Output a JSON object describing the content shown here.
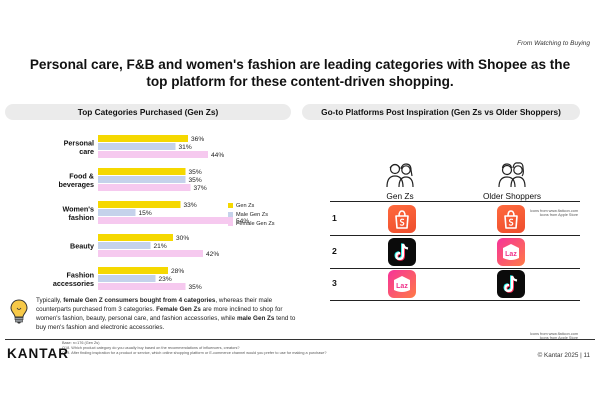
{
  "kicker": "From Watching to Buying",
  "headline": "Personal care, F&B and women's fashion are leading categories with Shopee as the top platform for these content-driven shopping.",
  "left_panel_title": "Top Categories Purchased (Gen Zs)",
  "right_panel_title": "Go-to Platforms Post Inspiration (Gen Zs vs Older Shoppers)",
  "colors": {
    "gen_z": "#f5d800",
    "male_gen_z": "#c5d2eb",
    "female_gen_z": "#f6c9ef"
  },
  "chart_data": {
    "type": "bar",
    "orientation": "horizontal",
    "categories": [
      "Personal care",
      "Food & beverages",
      "Women's fashion",
      "Beauty",
      "Fashion accessories"
    ],
    "series": [
      {
        "name": "Gen Zs",
        "values": [
          36,
          35,
          33,
          30,
          28
        ],
        "labels": [
          "36%",
          "35%",
          "33%",
          "30%",
          "28%"
        ]
      },
      {
        "name": "Male Gen Zs",
        "values": [
          31,
          35,
          15,
          21,
          23
        ],
        "labels": [
          "31%",
          "35%",
          "15%",
          "21%",
          "23%"
        ]
      },
      {
        "name": "Female Gen Zs",
        "values": [
          44,
          37,
          54,
          42,
          35
        ],
        "labels": [
          "44%",
          "37%",
          "54%",
          "42%",
          "35%"
        ]
      }
    ],
    "legend_position": "right",
    "grid": false
  },
  "category_display": [
    [
      "Personal",
      "care"
    ],
    [
      "Food &",
      "beverages"
    ],
    [
      "Women's",
      "fashion"
    ],
    [
      "Beauty"
    ],
    [
      "Fashion",
      "accessories"
    ]
  ],
  "note": {
    "p1": "Typically, ",
    "b1": "female Gen Z consumers bought from 4 categories",
    "p2": ", whereas their male counterparts purchased from 3 categories. ",
    "b2": "Female Gen Zs",
    "p3": " are more inclined to shop for women's fashion, beauty, personal care, and fashion accessories, while ",
    "b3": "male Gen Zs",
    "p4": " tend to buy men's fashion and electronic accessories."
  },
  "platforms": {
    "columns": [
      "Gen Zs",
      "Older Shoppers"
    ],
    "ranks": [
      "1",
      "2",
      "3"
    ],
    "gen_z": [
      "Shopee",
      "TikTok",
      "Lazada"
    ],
    "older": [
      "Shopee",
      "Lazada",
      "TikTok"
    ]
  },
  "source_notes": {
    "line1a": "Icons from www.flaticon.com",
    "line1b": "Icons from Apple Store",
    "line2a": "Icons from www.flaticon.com",
    "line2b": "Icons from Apple Store"
  },
  "base_notes": [
    "Base: n=176 (Gen Zs)",
    "Q18. Which product category do you usually buy based on the recommendations of influencers, creators?",
    "Q19. After finding inspiration for a product or service, which online shopping platform or E-commerce channel would you prefer to use for making a purchase?"
  ],
  "logo": "KANTAR",
  "copyright": "© Kantar 2025 | 11"
}
